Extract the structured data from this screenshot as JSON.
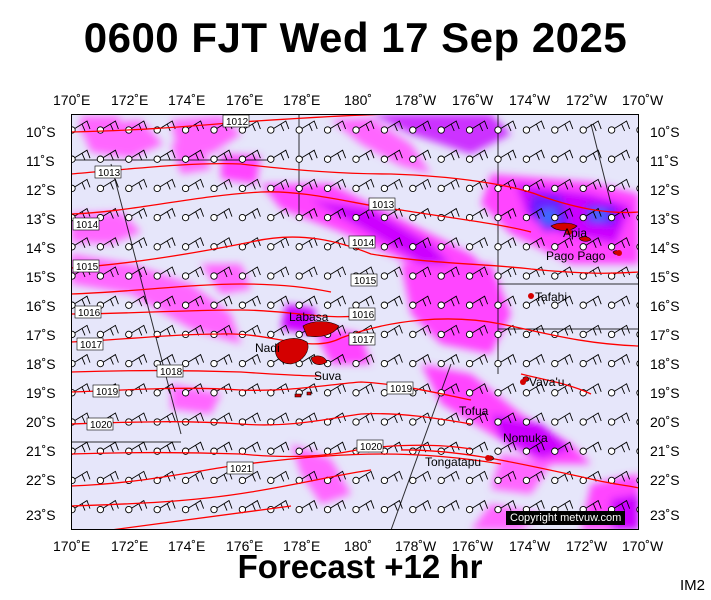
{
  "title": "0600 FJT Wed 17 Sep 2025",
  "footer": "Forecast +12 hr",
  "image_code": "IM2",
  "copyright": "Copyright metvuw.com",
  "colors": {
    "background": "#e6e6fa",
    "rain_light": "#ff66ff",
    "rain_mid": "#cc00ff",
    "rain_heavy": "#6a1aff",
    "rain_core": "#3a6bff",
    "isobar": "#ff0000",
    "land": "#d40000",
    "grid": "#000000"
  },
  "lon_labels": [
    "170˚E",
    "172˚E",
    "174˚E",
    "176˚E",
    "178˚E",
    "180˚",
    "178˚W",
    "176˚W",
    "174˚W",
    "172˚W",
    "170˚W"
  ],
  "lat_labels": [
    "10˚S",
    "11˚S",
    "12˚S",
    "13˚S",
    "14˚S",
    "15˚S",
    "16˚S",
    "17˚S",
    "18˚S",
    "19˚S",
    "20˚S",
    "21˚S",
    "22˚S",
    "23˚S"
  ],
  "isobar_labels": [
    "1012",
    "1013",
    "1013",
    "1014",
    "1014",
    "1015",
    "1015",
    "1016",
    "1016",
    "1017",
    "1017",
    "1018",
    "1019",
    "1019",
    "1020",
    "1020",
    "1021"
  ],
  "places": [
    "Apia",
    "Pago Pago",
    "Tafahi",
    "Labasa",
    "Nadi",
    "Suva",
    "Vava'u",
    "Tofua",
    "Nomuka",
    "Tongatapu"
  ],
  "map_data": {
    "lon_range": [
      "170E",
      "170W"
    ],
    "lat_range": [
      "10S",
      "23S"
    ],
    "wind_barbs": "grid every 1 degree"
  }
}
